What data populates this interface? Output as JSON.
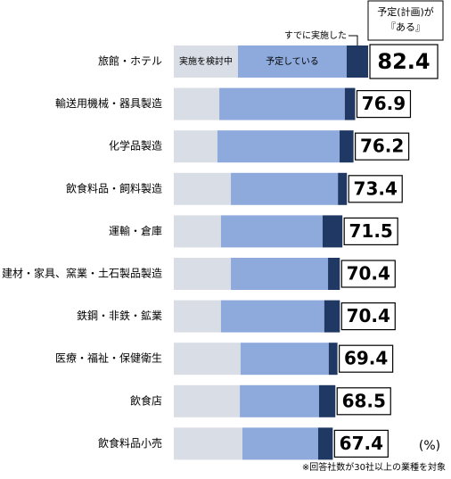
{
  "chart_data": {
    "type": "stacked-bar-horizontal",
    "categories": [
      "旅館・ホテル",
      "輸送用機械・器具製造",
      "化学品製造",
      "飲食料品・飼料製造",
      "運輸・倉庫",
      "建材・家具、窯業・土石製品製造",
      "鉄鋼・非鉄・鉱業",
      "医療・福祉・保健衛生",
      "飲食店",
      "飲食料品小売"
    ],
    "series": [
      {
        "name": "実施を検討中",
        "color": "#d9dde6",
        "values": [
          27.2,
          19.3,
          18.5,
          24.2,
          20.0,
          24.2,
          20.0,
          28.3,
          28.0,
          29.1
        ]
      },
      {
        "name": "予定している",
        "color": "#8ea9db",
        "values": [
          46.1,
          53.2,
          51.8,
          45.4,
          43.1,
          41.2,
          43.8,
          37.4,
          33.6,
          32.1
        ]
      },
      {
        "name": "すでに実施した",
        "color": "#203864",
        "values": [
          9.1,
          4.4,
          5.9,
          3.8,
          8.4,
          5.0,
          6.6,
          3.7,
          6.9,
          6.2
        ]
      }
    ],
    "totals": [
      82.4,
      76.9,
      76.2,
      73.4,
      71.5,
      70.4,
      70.4,
      69.4,
      68.5,
      67.4
    ],
    "totals_header": [
      "予定(計画)が",
      "『ある』"
    ],
    "unit": "(%)",
    "footnote": "※回答社数が30社以上の業種を対象"
  }
}
